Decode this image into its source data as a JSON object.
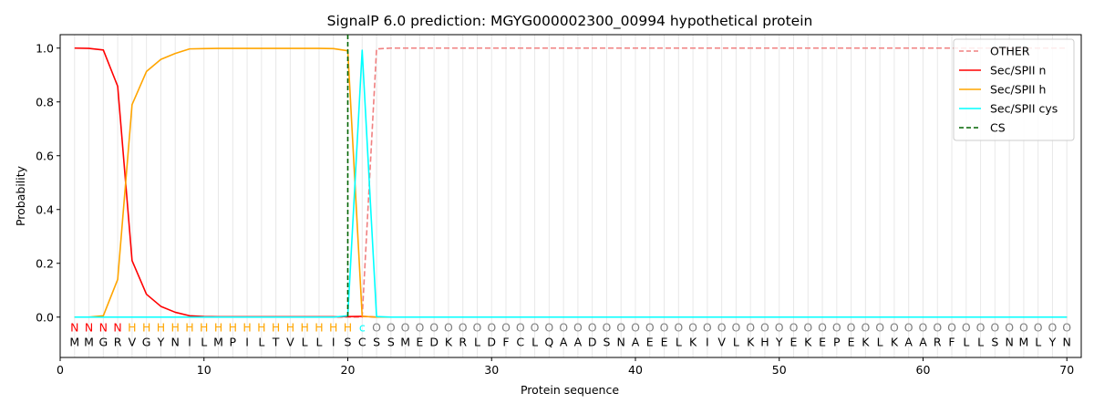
{
  "chart_data": {
    "type": "line",
    "title": "SignalP 6.0 prediction: MGYG000002300_00994 hypothetical protein",
    "xlabel": "Protein sequence",
    "ylabel": "Probability",
    "xlim": [
      0,
      71
    ],
    "ylim": [
      -0.15,
      1.05
    ],
    "xticks": [
      0,
      10,
      20,
      30,
      40,
      50,
      60,
      70
    ],
    "yticks": [
      0.0,
      0.2,
      0.4,
      0.6,
      0.8,
      1.0
    ],
    "ytick_labels": [
      "0.0",
      "0.2",
      "0.4",
      "0.6",
      "0.8",
      "1.0"
    ],
    "legend_position": "top-right",
    "sequence": "MMGRVGYNILMPILTVLLISCSSMEDKRLDFCLQAADSNAEELKIVLKHYEKEPEKLKAARFLLSNMLYN",
    "region_labels": "NNNNHHHHHHHHHHHHHHHHcOOOOOOOOOOOOOOOOOOOOOOOOOOOOOOOOOOOOOOOOOOOOOOOOO",
    "region_colors": {
      "N": "#ff0000",
      "H": "#ffa500",
      "c": "#00ffff",
      "O": "#808080"
    },
    "cs_position": 20,
    "series": [
      {
        "name": "OTHER",
        "color": "#f08080",
        "dash": "dashed",
        "values": [
          0,
          0,
          0,
          0,
          0,
          0,
          0,
          0,
          0,
          0,
          0,
          0,
          0,
          0,
          0,
          0,
          0,
          0,
          0,
          0,
          0,
          0.997,
          1,
          1,
          1,
          1,
          1,
          1,
          1,
          1,
          1,
          1,
          1,
          1,
          1,
          1,
          1,
          1,
          1,
          1,
          1,
          1,
          1,
          1,
          1,
          1,
          1,
          1,
          1,
          1,
          1,
          1,
          1,
          1,
          1,
          1,
          1,
          1,
          1,
          1,
          1,
          1,
          1,
          1,
          1,
          1,
          1,
          1,
          1,
          1
        ]
      },
      {
        "name": "Sec/SPII n",
        "color": "#ff0000",
        "dash": "solid",
        "values": [
          1.0,
          0.999,
          0.993,
          0.858,
          0.21,
          0.085,
          0.04,
          0.018,
          0.005,
          0.002,
          0.001,
          0.001,
          0.001,
          0.001,
          0.001,
          0.001,
          0.001,
          0.001,
          0.001,
          0.002,
          0.003,
          0,
          0,
          0,
          0,
          0,
          0,
          0,
          0,
          0,
          0,
          0,
          0,
          0,
          0,
          0,
          0,
          0,
          0,
          0,
          0,
          0,
          0,
          0,
          0,
          0,
          0,
          0,
          0,
          0,
          0,
          0,
          0,
          0,
          0,
          0,
          0,
          0,
          0,
          0,
          0,
          0,
          0,
          0,
          0,
          0,
          0,
          0,
          0,
          0
        ]
      },
      {
        "name": "Sec/SPII h",
        "color": "#ffa500",
        "dash": "solid",
        "values": [
          0,
          0,
          0.005,
          0.14,
          0.79,
          0.913,
          0.958,
          0.98,
          0.997,
          0.998,
          0.999,
          0.999,
          0.999,
          0.999,
          0.999,
          0.999,
          0.999,
          0.999,
          0.998,
          0.99,
          0.003,
          0,
          0,
          0,
          0,
          0,
          0,
          0,
          0,
          0,
          0,
          0,
          0,
          0,
          0,
          0,
          0,
          0,
          0,
          0,
          0,
          0,
          0,
          0,
          0,
          0,
          0,
          0,
          0,
          0,
          0,
          0,
          0,
          0,
          0,
          0,
          0,
          0,
          0,
          0,
          0,
          0,
          0,
          0,
          0,
          0,
          0,
          0,
          0,
          0
        ]
      },
      {
        "name": "Sec/SPII cys",
        "color": "#00ffff",
        "dash": "solid",
        "values": [
          0,
          0,
          0,
          0,
          0,
          0,
          0,
          0,
          0,
          0,
          0,
          0,
          0,
          0,
          0,
          0,
          0,
          0,
          0,
          0.005,
          0.992,
          0.002,
          0,
          0,
          0,
          0,
          0,
          0,
          0,
          0,
          0,
          0,
          0,
          0,
          0,
          0,
          0,
          0,
          0,
          0,
          0,
          0,
          0,
          0,
          0,
          0,
          0,
          0,
          0,
          0,
          0,
          0,
          0,
          0,
          0,
          0,
          0,
          0,
          0,
          0,
          0,
          0,
          0,
          0,
          0,
          0,
          0,
          0,
          0,
          0
        ]
      }
    ],
    "cs_legend": {
      "name": "CS",
      "color": "#006400",
      "dash": "dashed"
    }
  }
}
